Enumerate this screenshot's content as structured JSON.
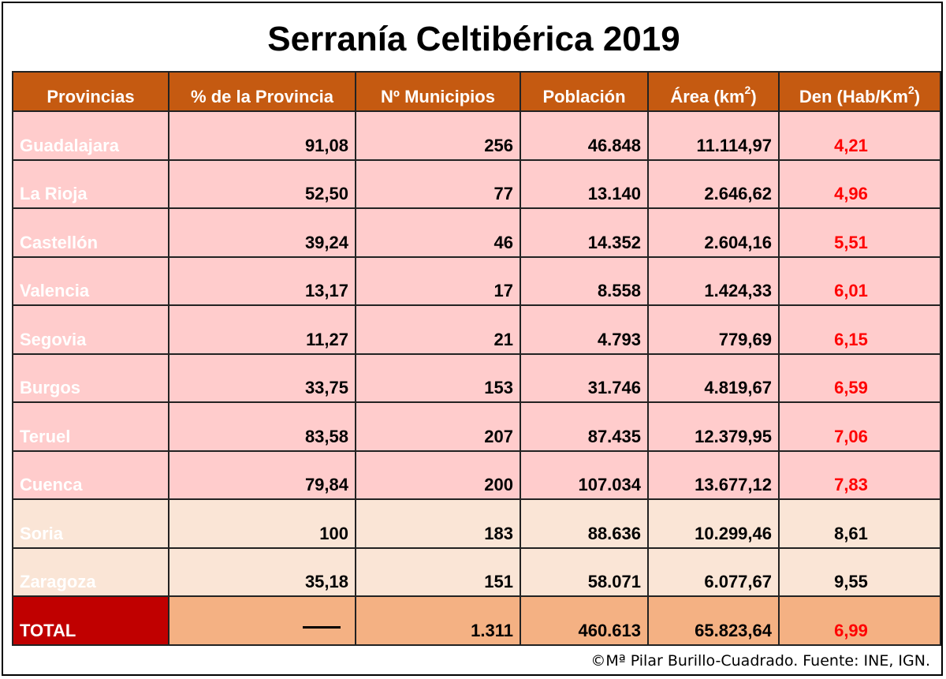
{
  "title": "Serranía Celtibérica 2019",
  "headers": {
    "provincias": "Provincias",
    "pct": "% de la Provincia",
    "municipios": "Nº Municipios",
    "poblacion": "Población",
    "area": "Área (km",
    "den": "Den (Hab/Km",
    "sup": "2"
  },
  "rows": [
    {
      "provincia": "Guadalajara",
      "pct": "91,08",
      "municipios": "256",
      "poblacion": "46.848",
      "area": "11.114,97",
      "den": "4,21"
    },
    {
      "provincia": "La Rioja",
      "pct": "52,50",
      "municipios": "77",
      "poblacion": "13.140",
      "area": "2.646,62",
      "den": "4,96"
    },
    {
      "provincia": "Castellón",
      "pct": "39,24",
      "municipios": "46",
      "poblacion": "14.352",
      "area": "2.604,16",
      "den": "5,51"
    },
    {
      "provincia": "Valencia",
      "pct": "13,17",
      "municipios": "17",
      "poblacion": "8.558",
      "area": "1.424,33",
      "den": "6,01"
    },
    {
      "provincia": "Segovia",
      "pct": "11,27",
      "municipios": "21",
      "poblacion": "4.793",
      "area": "779,69",
      "den": "6,15"
    },
    {
      "provincia": "Burgos",
      "pct": "33,75",
      "municipios": "153",
      "poblacion": "31.746",
      "area": "4.819,67",
      "den": "6,59"
    },
    {
      "provincia": "Teruel",
      "pct": "83,58",
      "municipios": "207",
      "poblacion": "87.435",
      "area": "12.379,95",
      "den": "7,06"
    },
    {
      "provincia": "Cuenca",
      "pct": "79,84",
      "municipios": "200",
      "poblacion": "107.034",
      "area": "13.677,12",
      "den": "7,83"
    },
    {
      "provincia": "Soria",
      "pct": "100",
      "municipios": "183",
      "poblacion": "88.636",
      "area": "10.299,46",
      "den": "8,61"
    },
    {
      "provincia": "Zaragoza",
      "pct": "35,18",
      "municipios": "151",
      "poblacion": "58.071",
      "area": "6.077,67",
      "den": "9,55"
    }
  ],
  "total": {
    "label": "TOTAL",
    "municipios": "1.311",
    "poblacion": "460.613",
    "area": "65.823,64",
    "den": "6,99"
  },
  "credit": "©Mª Pilar Burillo-Cuadrado. Fuente: INE, IGN.",
  "colors": {
    "header": "#C55A11",
    "province_cell": "#ED7D31",
    "row_pink": "#FFCCCC",
    "row_beige": "#FAE5D6",
    "total_row": "#F4B183",
    "total_label": "#C00000",
    "highlight_text": "#FF0000"
  }
}
